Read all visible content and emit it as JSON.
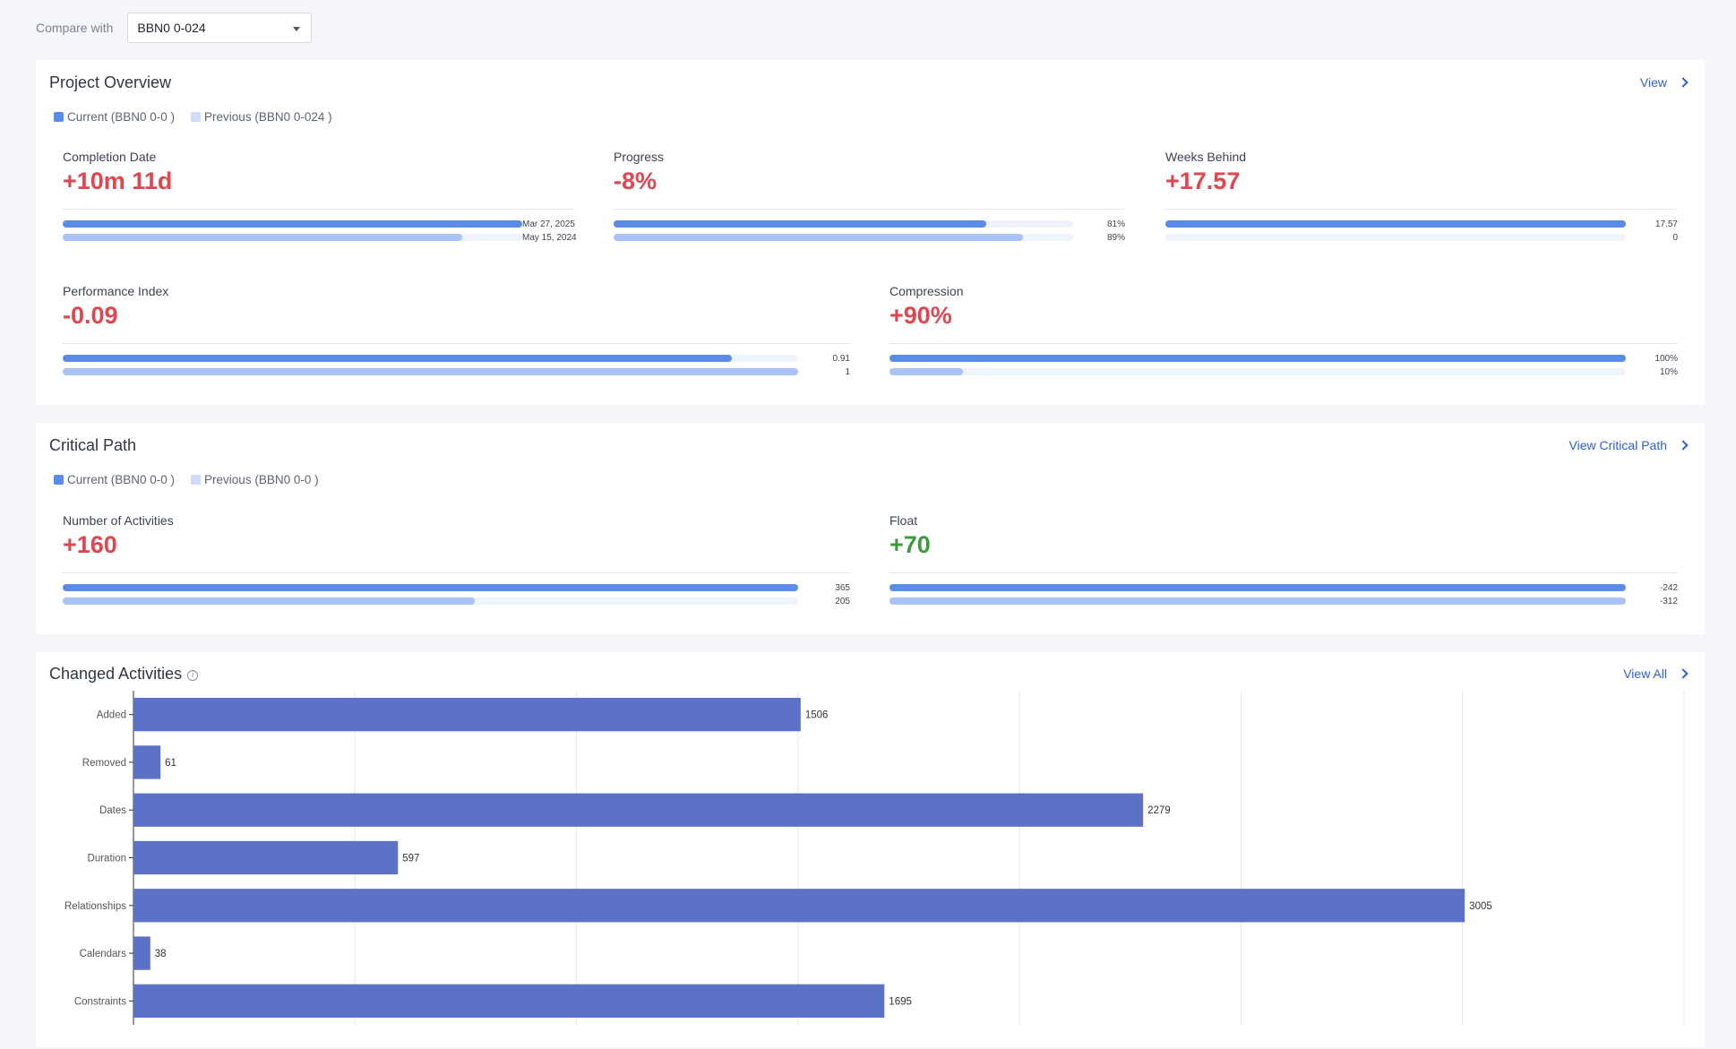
{
  "compare": {
    "label": "Compare with",
    "selected": "BBN0 0-024"
  },
  "colors": {
    "current": "#5b8be8",
    "previous": "#a9c3f5",
    "negative": "#e0464f",
    "positive": "#3d9a3d",
    "link": "#2b5fd9",
    "chart_bar": "#5c72c7"
  },
  "overview": {
    "title": "Project Overview",
    "link": "View",
    "legend": {
      "current": "Current (BBN0 0-0 )",
      "previous": "Previous (BBN0 0-024 )"
    },
    "metrics": [
      {
        "label": "Completion Date",
        "value": "+10m 11d",
        "tone": "negative",
        "current": {
          "fraction": 1.0,
          "text": "Mar 27, 2025"
        },
        "previous": {
          "fraction": 0.87,
          "text": "May 15, 2024"
        }
      },
      {
        "label": "Progress",
        "value": "-8%",
        "tone": "negative",
        "current": {
          "fraction": 0.81,
          "text": "81%"
        },
        "previous": {
          "fraction": 0.89,
          "text": "89%"
        }
      },
      {
        "label": "Weeks Behind",
        "value": "+17.57",
        "tone": "negative",
        "current": {
          "fraction": 1.0,
          "text": "17.57"
        },
        "previous": {
          "fraction": 0.0,
          "text": "0"
        }
      },
      {
        "label": "Performance Index",
        "value": "-0.09",
        "tone": "negative",
        "current": {
          "fraction": 0.91,
          "text": "0.91"
        },
        "previous": {
          "fraction": 1.0,
          "text": "1"
        }
      },
      {
        "label": "Compression",
        "value": "+90%",
        "tone": "negative",
        "current": {
          "fraction": 1.0,
          "text": "100%"
        },
        "previous": {
          "fraction": 0.1,
          "text": "10%"
        }
      }
    ]
  },
  "critical": {
    "title": "Critical Path",
    "link": "View Critical Path",
    "legend": {
      "current": "Current (BBN0 0-0 )",
      "previous": "Previous (BBN0 0-0 )"
    },
    "metrics": [
      {
        "label": "Number of Activities",
        "value": "+160",
        "tone": "negative",
        "current": {
          "fraction": 1.0,
          "text": "365"
        },
        "previous": {
          "fraction": 0.56,
          "text": "205"
        }
      },
      {
        "label": "Float",
        "value": "+70",
        "tone": "positive",
        "current": {
          "fraction": 1.0,
          "text": "-242"
        },
        "previous": {
          "fraction": 1.0,
          "text": "-312"
        }
      }
    ]
  },
  "changed": {
    "title": "Changed Activities",
    "link": "View All"
  },
  "chart_data": {
    "type": "bar",
    "orientation": "horizontal",
    "categories": [
      "Added",
      "Removed",
      "Dates",
      "Duration",
      "Relationships",
      "Calendars",
      "Constraints"
    ],
    "values": [
      1506,
      61,
      2279,
      597,
      3005,
      38,
      1695
    ],
    "xlim": [
      0,
      3500
    ],
    "grid": true,
    "data_labels": true
  }
}
